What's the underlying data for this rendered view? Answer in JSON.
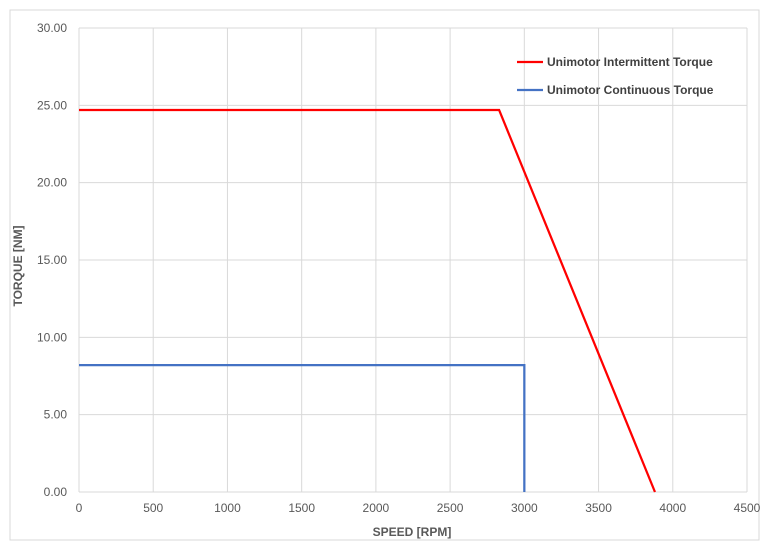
{
  "chart_data": {
    "type": "line",
    "xlabel": "SPEED [RPM]",
    "ylabel": "TORQUE [NM]",
    "xlim": [
      0,
      4500
    ],
    "ylim": [
      0,
      30
    ],
    "x_ticks": [
      "0",
      "500",
      "1000",
      "1500",
      "2000",
      "2500",
      "3000",
      "3500",
      "4000",
      "4500"
    ],
    "y_ticks": [
      "0.00",
      "5.00",
      "10.00",
      "15.00",
      "20.00",
      "25.00",
      "30.00"
    ],
    "grid": true,
    "legend_position": "top-right",
    "series": [
      {
        "name": "Unimotor Intermittent Torque",
        "color": "#ff0000",
        "points": [
          [
            0,
            24.7
          ],
          [
            2830,
            24.7
          ],
          [
            3880,
            0
          ]
        ]
      },
      {
        "name": "Unimotor Continuous Torque",
        "color": "#4472c4",
        "points": [
          [
            0,
            8.2
          ],
          [
            3000,
            8.2
          ],
          [
            3000,
            0
          ]
        ]
      }
    ]
  }
}
